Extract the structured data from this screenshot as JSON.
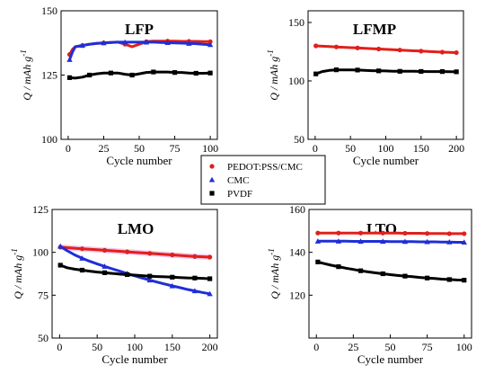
{
  "colors": {
    "pedot": "#e0201a",
    "cmc": "#1f2fd6",
    "pvdf": "#000000",
    "band": "#f3c6ee"
  },
  "legend": {
    "entries": [
      {
        "label": "PEDOT:PSS/CMC",
        "marker": "circle",
        "color": "#e0201a"
      },
      {
        "label": "CMC",
        "marker": "triangle",
        "color": "#1f2fd6"
      },
      {
        "label": "PVDF",
        "marker": "square",
        "color": "#000000"
      }
    ]
  },
  "chart_data": [
    {
      "type": "scatter",
      "title": "LFP",
      "xlabel": "Cycle number",
      "ylabel": "Q / mAh g-1",
      "xlim": [
        -5,
        105
      ],
      "ylim": [
        100,
        150
      ],
      "xticks": [
        0,
        25,
        50,
        75,
        100
      ],
      "yticks": [
        100,
        125,
        150
      ],
      "series": [
        {
          "name": "PEDOT:PSS/CMC",
          "key": "pedot",
          "x": [
            1,
            3,
            5,
            10,
            15,
            20,
            25,
            30,
            35,
            40,
            45,
            50,
            55,
            60,
            65,
            70,
            75,
            80,
            85,
            90,
            95,
            100
          ],
          "y": [
            133,
            135,
            136,
            136.5,
            137,
            137.3,
            137.5,
            137.7,
            137.8,
            137,
            136,
            137,
            138,
            138.2,
            138.2,
            138.2,
            138.2,
            138.1,
            138.1,
            138.1,
            138,
            138
          ]
        },
        {
          "name": "CMC",
          "key": "cmc",
          "x": [
            1,
            3,
            5,
            10,
            15,
            20,
            25,
            30,
            35,
            40,
            45,
            50,
            55,
            60,
            65,
            70,
            75,
            80,
            85,
            90,
            95,
            100
          ],
          "y": [
            131,
            134,
            136,
            136.5,
            137,
            137.3,
            137.5,
            137.7,
            137.8,
            137.8,
            137.8,
            137.8,
            137.8,
            137.8,
            137.7,
            137.6,
            137.5,
            137.4,
            137.3,
            137.2,
            137,
            136.8
          ]
        },
        {
          "name": "PVDF",
          "key": "pvdf",
          "x": [
            1,
            5,
            10,
            15,
            20,
            25,
            30,
            35,
            40,
            45,
            50,
            55,
            60,
            65,
            70,
            75,
            80,
            85,
            90,
            95,
            100
          ],
          "y": [
            124,
            123.8,
            124.2,
            125,
            125.5,
            125.8,
            125.8,
            125.8,
            125.3,
            125,
            125.5,
            126,
            126.2,
            126.2,
            126.2,
            126,
            126,
            125.8,
            125.7,
            125.7,
            125.8
          ]
        }
      ]
    },
    {
      "type": "scatter",
      "title": "LFMP",
      "xlabel": "Cycle number",
      "ylabel": "Q / mAh g-1",
      "xlim": [
        -10,
        210
      ],
      "ylim": [
        50,
        160
      ],
      "xticks": [
        0,
        50,
        100,
        150,
        200
      ],
      "yticks": [
        50,
        100,
        150
      ],
      "series": [
        {
          "name": "PEDOT:PSS/CMC",
          "key": "pedot",
          "x": [
            1,
            10,
            20,
            30,
            40,
            50,
            60,
            70,
            80,
            90,
            100,
            110,
            120,
            130,
            140,
            150,
            160,
            170,
            180,
            190,
            200
          ],
          "y": [
            130,
            129.7,
            129.4,
            129.1,
            128.8,
            128.5,
            128.2,
            127.9,
            127.6,
            127.3,
            127,
            126.7,
            126.4,
            126.1,
            125.8,
            125.5,
            125.2,
            124.9,
            124.6,
            124.4,
            124.2
          ]
        },
        {
          "name": "PVDF",
          "key": "pvdf",
          "x": [
            1,
            10,
            20,
            30,
            40,
            50,
            60,
            70,
            80,
            90,
            100,
            110,
            120,
            130,
            140,
            150,
            160,
            170,
            180,
            190,
            200
          ],
          "y": [
            106,
            108,
            109,
            109.5,
            109.5,
            109.5,
            109.3,
            109,
            108.8,
            108.6,
            108.5,
            108.3,
            108.2,
            108.2,
            108.2,
            108.1,
            108,
            108,
            108,
            107.9,
            107.8
          ]
        }
      ]
    },
    {
      "type": "scatter",
      "title": "LMO",
      "xlabel": "Cycle number",
      "ylabel": "Q / mAh g-1",
      "xlim": [
        -10,
        210
      ],
      "ylim": [
        50,
        125
      ],
      "xticks": [
        0,
        50,
        100,
        150,
        200
      ],
      "yticks": [
        50,
        75,
        100,
        125
      ],
      "series": [
        {
          "name": "PEDOT:PSS/CMC",
          "key": "pedot",
          "x": [
            1,
            10,
            20,
            30,
            40,
            50,
            60,
            70,
            80,
            90,
            100,
            110,
            120,
            130,
            140,
            150,
            160,
            170,
            180,
            190,
            200
          ],
          "y": [
            103,
            102.7,
            102.4,
            102.1,
            101.8,
            101.5,
            101.2,
            100.9,
            100.6,
            100.3,
            100,
            99.7,
            99.4,
            99.1,
            98.8,
            98.5,
            98.2,
            97.9,
            97.6,
            97.4,
            97.2
          ]
        },
        {
          "name": "CMC",
          "key": "cmc",
          "x": [
            1,
            10,
            20,
            30,
            40,
            50,
            60,
            70,
            80,
            90,
            100,
            110,
            120,
            130,
            140,
            150,
            160,
            170,
            180,
            190,
            200
          ],
          "y": [
            103.5,
            101,
            98.5,
            96.5,
            94.8,
            93.2,
            91.8,
            90.4,
            89,
            87.6,
            86.3,
            85,
            83.8,
            82.6,
            81.5,
            80.4,
            79.4,
            78.4,
            77.5,
            76.6,
            75.8
          ]
        },
        {
          "name": "PVDF",
          "key": "pvdf",
          "x": [
            1,
            10,
            20,
            30,
            40,
            50,
            60,
            70,
            80,
            90,
            100,
            110,
            120,
            130,
            140,
            150,
            160,
            170,
            180,
            190,
            200
          ],
          "y": [
            92.5,
            91,
            90.2,
            89.6,
            89,
            88.5,
            88.1,
            87.7,
            87.3,
            87,
            86.7,
            86.4,
            86.1,
            85.9,
            85.7,
            85.5,
            85.3,
            85.1,
            85,
            84.8,
            84.6
          ]
        }
      ]
    },
    {
      "type": "scatter",
      "title": "LTO",
      "xlabel": "Cycle number",
      "ylabel": "Q / mAh g-1",
      "xlim": [
        -5,
        105
      ],
      "ylim": [
        100,
        160
      ],
      "xticks": [
        0,
        25,
        50,
        75,
        100
      ],
      "yticks": [
        120,
        140,
        160
      ],
      "series": [
        {
          "name": "PEDOT:PSS/CMC",
          "key": "pedot",
          "x": [
            1,
            5,
            10,
            15,
            20,
            25,
            30,
            35,
            40,
            45,
            50,
            55,
            60,
            65,
            70,
            75,
            80,
            85,
            90,
            95,
            100
          ],
          "y": [
            149,
            149,
            149,
            149,
            149,
            149,
            149,
            149,
            149,
            149,
            149,
            149,
            148.9,
            148.9,
            148.9,
            148.8,
            148.8,
            148.8,
            148.7,
            148.7,
            148.7
          ]
        },
        {
          "name": "CMC",
          "key": "cmc",
          "x": [
            1,
            5,
            10,
            15,
            20,
            25,
            30,
            35,
            40,
            45,
            50,
            55,
            60,
            65,
            70,
            75,
            80,
            85,
            90,
            95,
            100
          ],
          "y": [
            145.2,
            145.2,
            145.2,
            145.2,
            145.2,
            145.1,
            145.1,
            145.1,
            145.1,
            145.1,
            145,
            145,
            145,
            145,
            144.9,
            144.9,
            144.9,
            144.8,
            144.8,
            144.7,
            144.7
          ]
        },
        {
          "name": "PVDF",
          "key": "pvdf",
          "x": [
            1,
            5,
            10,
            15,
            20,
            25,
            30,
            35,
            40,
            45,
            50,
            55,
            60,
            65,
            70,
            75,
            80,
            85,
            90,
            95,
            100
          ],
          "y": [
            135.5,
            134.8,
            134,
            133.3,
            132.6,
            132,
            131.4,
            130.9,
            130.4,
            130,
            129.6,
            129.2,
            128.9,
            128.6,
            128.3,
            128,
            127.8,
            127.5,
            127.3,
            127.1,
            127
          ]
        }
      ]
    }
  ]
}
